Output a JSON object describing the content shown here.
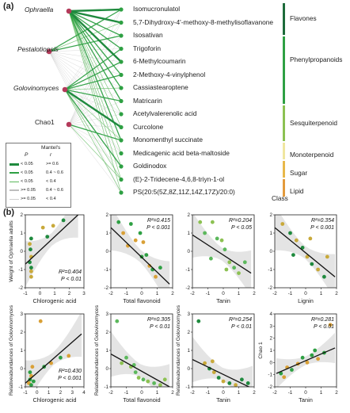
{
  "panel_a": {
    "label": "(a)",
    "left_nodes": [
      "Ophraella",
      "Pestalotiopsis",
      "Golovinomyces",
      "Chao1"
    ],
    "compounds": [
      "Isomucronulatol",
      "5,7-Dihydroxy-4'-methoxy-8-methylisoflavanone",
      "Isosativan",
      "Trigoforin",
      "6-Methylcoumarin",
      "2-Methoxy-4-vinylphenol",
      "Cassiastearoptene",
      "Matricarin",
      "Acetylvalerenolic acid",
      "Curcolone",
      "Monomenthyl succinate",
      "Medicagenic acid beta-maltoside",
      "Goldinodox",
      "(E)-2-Tridecene-4,6,8-triyn-1-ol",
      "PS(20:5(5Z,8Z,11Z,14Z,17Z)/20:0)"
    ],
    "classes": [
      {
        "name": "Flavones",
        "color": "#1d6b3a"
      },
      {
        "name": "Phenylpropanoids",
        "color": "#2ea043"
      },
      {
        "name": "Sesquiterpenoid",
        "color": "#8cc152"
      },
      {
        "name": "Monoterpenoid",
        "color": "#f0e6a0"
      },
      {
        "name": "Sugar",
        "color": "#e8b84a"
      },
      {
        "name": "Lipid",
        "color": "#e39a3c"
      }
    ],
    "class_axis_label": "Class",
    "legend": {
      "title": "Mantel's",
      "p_header": "P",
      "r_header": "r",
      "rows": [
        {
          "p": "< 0.05",
          "r": ">= 0.6"
        },
        {
          "p": "< 0.05",
          "r": "0.4 ~ 0.6"
        },
        {
          "p": "< 0.05",
          "r": "< 0.4"
        },
        {
          "p": ">= 0.05",
          "r": "0.4 ~ 0.6"
        },
        {
          "p": ">= 0.05",
          "r": "< 0.4"
        }
      ]
    }
  },
  "panel_b": {
    "label": "(b)",
    "chart_data": [
      {
        "type": "scatter",
        "ylabel": "Weight of Ophraella adults",
        "xlabel": "Chlorogenic acid",
        "r2": "R²=0.404",
        "p": "P < 0.01",
        "xlim": [
          -1,
          3
        ],
        "ylim": [
          -2,
          2
        ],
        "xticks": [
          "-1",
          "0",
          "1",
          "2",
          "3"
        ],
        "yticks": [
          "-2",
          "-1",
          "0",
          "1",
          "2"
        ],
        "points": [
          [
            -0.6,
            -0.9
          ],
          [
            -0.6,
            -1.1
          ],
          [
            -0.7,
            -0.6
          ],
          [
            -0.6,
            -0.3
          ],
          [
            -0.65,
            0.1
          ],
          [
            -0.7,
            0.4
          ],
          [
            -0.6,
            0.7
          ],
          [
            0.2,
            1.3
          ],
          [
            0.5,
            0.8
          ],
          [
            0.9,
            1.4
          ],
          [
            1.6,
            1.7
          ],
          [
            -0.6,
            -1.4
          ]
        ],
        "fit": [
          [
            -1,
            -0.7
          ],
          [
            2.6,
            2.0
          ]
        ]
      },
      {
        "type": "scatter",
        "ylabel": "",
        "xlabel": "Total flavonoid",
        "r2": "R²=0.415",
        "p": "P < 0.001",
        "xlim": [
          -2,
          2
        ],
        "ylim": [
          -2,
          2
        ],
        "xticks": [
          "-2",
          "-1",
          "0",
          "1",
          "2"
        ],
        "yticks": [
          "-2",
          "-1",
          "0",
          "1",
          "2"
        ],
        "points": [
          [
            -1.5,
            1.6
          ],
          [
            -1.2,
            1.0
          ],
          [
            -0.7,
            1.5
          ],
          [
            -0.4,
            0.6
          ],
          [
            -0.1,
            1.0
          ],
          [
            0.1,
            0.5
          ],
          [
            0.3,
            -0.2
          ],
          [
            0.5,
            -0.8
          ],
          [
            0.7,
            -1.0
          ],
          [
            0.9,
            -1.4
          ],
          [
            1.2,
            -0.9
          ],
          [
            -0.9,
            0.3
          ],
          [
            0.0,
            -0.3
          ]
        ],
        "fit": [
          [
            -2,
            1.3
          ],
          [
            1.8,
            -1.8
          ]
        ]
      },
      {
        "type": "scatter",
        "ylabel": "",
        "xlabel": "Tanin",
        "r2": "R²=0.204",
        "p": "P < 0.05",
        "xlim": [
          -2,
          2
        ],
        "ylim": [
          -2,
          2
        ],
        "xticks": [
          "-2",
          "-1",
          "0",
          "1",
          "2"
        ],
        "yticks": [
          "-2",
          "-1",
          "0",
          "1",
          "2"
        ],
        "points": [
          [
            -1.5,
            1.6
          ],
          [
            -1.2,
            1.0
          ],
          [
            -0.7,
            1.6
          ],
          [
            -0.4,
            0.7
          ],
          [
            -0.1,
            0.6
          ],
          [
            0.1,
            0.1
          ],
          [
            0.4,
            -0.6
          ],
          [
            0.7,
            -0.9
          ],
          [
            1.0,
            -1.2
          ],
          [
            -0.8,
            -0.4
          ],
          [
            0.2,
            -1.0
          ],
          [
            1.4,
            -0.6
          ]
        ],
        "fit": [
          [
            -2,
            0.9
          ],
          [
            1.8,
            -1.2
          ]
        ]
      },
      {
        "type": "scatter",
        "ylabel": "",
        "xlabel": "Lignin",
        "r2": "R²=0.354",
        "p": "P < 0.001",
        "xlim": [
          -2,
          2
        ],
        "ylim": [
          -2,
          2
        ],
        "xticks": [
          "-2",
          "-1",
          "0",
          "1",
          "2"
        ],
        "yticks": [
          "-2",
          "-1",
          "0",
          "1",
          "2"
        ],
        "points": [
          [
            -1.5,
            1.5
          ],
          [
            -1.0,
            1.0
          ],
          [
            -0.6,
            0.6
          ],
          [
            -0.2,
            0.2
          ],
          [
            0.1,
            -0.3
          ],
          [
            0.4,
            -0.7
          ],
          [
            0.8,
            -1.0
          ],
          [
            1.2,
            -1.4
          ],
          [
            0.3,
            0.7
          ],
          [
            -0.8,
            -0.2
          ],
          [
            1.4,
            -0.3
          ]
        ],
        "fit": [
          [
            -2,
            1.3
          ],
          [
            1.9,
            -1.4
          ]
        ]
      },
      {
        "type": "scatter",
        "ylabel": "Relativeabundances of Golovinomyces",
        "xlabel": "Chlorogenic acid",
        "r2": "R²=0.430",
        "p": "P < 0.001",
        "xlim": [
          -1,
          4
        ],
        "ylim": [
          -1,
          3
        ],
        "xticks": [
          "-1",
          "0",
          "1",
          "2",
          "3",
          "4"
        ],
        "yticks": [
          "-1",
          "0",
          "1",
          "2",
          "3"
        ],
        "points": [
          [
            -0.7,
            -0.8
          ],
          [
            -0.6,
            -0.6
          ],
          [
            -0.5,
            -0.4
          ],
          [
            -0.6,
            -0.2
          ],
          [
            -0.4,
            0.1
          ],
          [
            -0.3,
            -0.7
          ],
          [
            0.3,
            2.6
          ],
          [
            0.6,
            0.1
          ],
          [
            1.2,
            0.3
          ],
          [
            2.0,
            0.6
          ],
          [
            2.7,
            0.7
          ],
          [
            -0.5,
            -0.9
          ]
        ],
        "fit": [
          [
            -1,
            -0.8
          ],
          [
            3.8,
            1.9
          ]
        ]
      },
      {
        "type": "scatter",
        "ylabel": "Relativeabundances of Golovinomyces",
        "xlabel": "Total flavonoid",
        "r2": "R²=0.305",
        "p": "P < 0.01",
        "xlim": [
          -2,
          2
        ],
        "ylim": [
          -1,
          3
        ],
        "xticks": [
          "-2",
          "-1",
          "0",
          "1",
          "2"
        ],
        "yticks": [
          "-1",
          "0",
          "1",
          "2",
          "3"
        ],
        "points": [
          [
            -1.6,
            2.6
          ],
          [
            -1.3,
            0.3
          ],
          [
            -1.0,
            0.6
          ],
          [
            -0.7,
            0.1
          ],
          [
            -0.4,
            -0.2
          ],
          [
            -0.2,
            -0.5
          ],
          [
            0.1,
            -0.6
          ],
          [
            0.4,
            -0.7
          ],
          [
            0.8,
            -0.8
          ],
          [
            1.2,
            -0.9
          ],
          [
            -0.5,
            0.2
          ],
          [
            1.5,
            -0.6
          ]
        ],
        "fit": [
          [
            -2,
            0.8
          ],
          [
            1.8,
            -1.0
          ]
        ]
      },
      {
        "type": "scatter",
        "ylabel": "Relativeabundances of Golovinomyces",
        "xlabel": "Tanin",
        "r2": "R²=0.254",
        "p": "P < 0.01",
        "xlim": [
          -2,
          2
        ],
        "ylim": [
          -1,
          3
        ],
        "xticks": [
          "-2",
          "-1",
          "0",
          "1",
          "2"
        ],
        "yticks": [
          "-1",
          "0",
          "1",
          "2",
          "3"
        ],
        "points": [
          [
            -1.6,
            2.6
          ],
          [
            -1.2,
            0.3
          ],
          [
            -0.9,
            0.0
          ],
          [
            -0.6,
            -0.2
          ],
          [
            -0.3,
            -0.5
          ],
          [
            0.0,
            -0.7
          ],
          [
            0.4,
            -0.8
          ],
          [
            0.8,
            -0.9
          ],
          [
            1.2,
            -0.6
          ],
          [
            -0.7,
            0.4
          ],
          [
            1.6,
            -0.8
          ]
        ],
        "fit": [
          [
            -2,
            0.5
          ],
          [
            1.9,
            -1.1
          ]
        ]
      },
      {
        "type": "scatter",
        "ylabel": "Chao 1",
        "xlabel": "Tanin",
        "r2": "R²=0.281",
        "p": "P < 0.01",
        "xlim": [
          -2,
          2
        ],
        "ylim": [
          -2,
          4
        ],
        "xticks": [
          "-2",
          "-1",
          "0",
          "1",
          "2"
        ],
        "yticks": [
          "-2",
          "-1",
          "0",
          "1",
          "2",
          "3",
          "4"
        ],
        "points": [
          [
            -1.6,
            -0.9
          ],
          [
            -1.2,
            -0.4
          ],
          [
            -0.9,
            -0.6
          ],
          [
            -0.5,
            -0.1
          ],
          [
            -0.2,
            0.4
          ],
          [
            0.1,
            0.0
          ],
          [
            0.4,
            0.6
          ],
          [
            0.8,
            0.3
          ],
          [
            1.2,
            0.8
          ],
          [
            1.6,
            3.1
          ],
          [
            0.6,
            1.0
          ],
          [
            -1.4,
            -1.2
          ]
        ],
        "fit": [
          [
            -1.9,
            -0.9
          ],
          [
            1.9,
            1.2
          ]
        ]
      }
    ]
  }
}
